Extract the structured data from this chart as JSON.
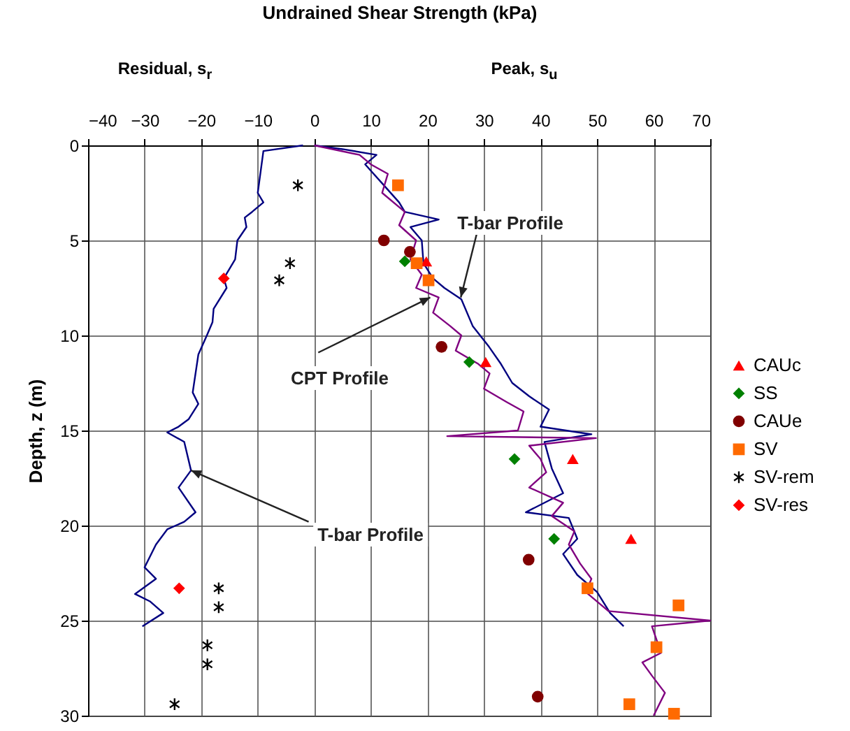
{
  "chart_data": {
    "type": "line",
    "xlabel": "Undrained Shear Strength (kPa)",
    "ylabel": "Depth, z (m)",
    "xlim": [
      -40,
      70
    ],
    "xticks": [
      -40,
      -30,
      -20,
      -10,
      0,
      10,
      20,
      30,
      40,
      50,
      60,
      70
    ],
    "ylim": [
      30,
      0
    ],
    "yticks": [
      0,
      5,
      10,
      15,
      20,
      25,
      30
    ],
    "grid": true,
    "legend": "right",
    "annotations": [
      "Residual, s$_{r}$",
      "Peak, s$_{u}$",
      {
        "text": "T-bar Profile",
        "x": 25.9,
        "y": 8.0
      },
      {
        "text": "CPT Profile",
        "x": 20.5,
        "y": 8.0
      },
      {
        "text": "T-bar Profile",
        "x": -21.8,
        "y": 17.1
      }
    ],
    "series": [
      {
        "color": "#000080",
        "x": [
          -2,
          -9,
          -9.5,
          -10,
          -9,
          -11,
          -12.3,
          -12,
          -13.6,
          -14,
          -16,
          -15.5,
          -17.8,
          -18,
          -19,
          -20.5,
          -21.5,
          -20.5,
          -22.2,
          -24,
          -26,
          -23,
          -21.8,
          -24,
          -21,
          -23,
          -26,
          -28,
          -30,
          -28,
          -31.7,
          -29,
          -26.7,
          -30.4
        ],
        "values": [
          0,
          0.3,
          1.4,
          2.5,
          3,
          3.5,
          3.8,
          4.3,
          5,
          6,
          7,
          7.5,
          8.6,
          9.3,
          10,
          11,
          13,
          13.6,
          14.4,
          14.8,
          15.1,
          15.6,
          17.1,
          18,
          19.3,
          19.8,
          20.2,
          21,
          22.2,
          22.8,
          23.6,
          24,
          24.6,
          25.3
        ]
      },
      {
        "color": "#000080",
        "x": [
          0,
          5,
          11,
          9,
          12,
          15,
          16,
          22,
          17,
          19,
          19.3,
          21,
          23,
          26,
          28,
          30.9,
          33,
          35,
          38,
          41.5,
          40,
          49,
          40.7,
          42,
          44,
          37.4,
          45,
          46.5,
          44,
          46.5,
          50,
          52.3,
          54.7
        ],
        "values": [
          0,
          0.2,
          0.5,
          1,
          2,
          3,
          3.5,
          3.9,
          4.3,
          5,
          6.2,
          7,
          7.5,
          8.1,
          9.5,
          10.6,
          11.5,
          12.5,
          13.2,
          13.9,
          14.8,
          15.2,
          15.6,
          17,
          18.3,
          19.3,
          19.6,
          20.7,
          21.5,
          22.6,
          23.5,
          24.6,
          25.3
        ]
      },
      {
        "color": "#800080",
        "x": [
          0,
          8,
          10,
          13,
          12,
          16,
          15,
          18,
          17,
          19,
          18,
          22,
          21,
          24,
          26,
          25,
          29,
          31,
          30,
          34,
          37,
          36,
          23.5,
          49.8,
          38,
          40,
          41,
          38,
          44,
          42,
          46,
          45,
          47,
          49,
          48,
          52,
          70,
          59.7,
          61.3,
          58,
          59.7,
          62,
          60
        ],
        "values": [
          0,
          0.5,
          1,
          1.5,
          2.5,
          3.5,
          4.2,
          5,
          6,
          6.8,
          7.5,
          8,
          8.8,
          9.5,
          10,
          10.8,
          11.5,
          12,
          12.8,
          13.5,
          14,
          15,
          15.3,
          15.4,
          15.8,
          16.5,
          17.2,
          18,
          18.8,
          19.5,
          20.3,
          21,
          22,
          22.8,
          23.5,
          24.5,
          25,
          25.3,
          26.7,
          27.2,
          27.9,
          28.8,
          30
        ]
      },
      {
        "type": "scatter",
        "name": "CAUc",
        "color": "#ff0000",
        "marker": "triangle",
        "x": [
          19.8,
          30.3,
          45.7,
          56
        ],
        "values": [
          6.1,
          11.4,
          16.5,
          20.7
        ]
      },
      {
        "type": "scatter",
        "name": "SS",
        "color": "#008000",
        "marker": "diamond",
        "x": [
          16,
          27.4,
          35.4,
          42.4
        ],
        "values": [
          6.1,
          11.4,
          16.5,
          20.7
        ]
      },
      {
        "type": "scatter",
        "name": "CAUe",
        "color": "#800000",
        "marker": "circle",
        "x": [
          12.3,
          16.9,
          22.5,
          37.9,
          39.5
        ],
        "values": [
          5.0,
          5.6,
          10.6,
          21.8,
          29.0
        ]
      },
      {
        "type": "scatter",
        "name": "SV",
        "color": "#ff6a00",
        "marker": "square",
        "x": [
          14.8,
          18.1,
          20.2,
          48.3,
          64.4,
          60.5,
          55.7,
          63.6
        ],
        "values": [
          2.1,
          6.2,
          7.1,
          23.3,
          24.2,
          26.4,
          29.4,
          29.9
        ]
      },
      {
        "type": "scatter",
        "name": "SV-rem",
        "color": "#000000",
        "marker": "cross",
        "x": [
          -2.9,
          -4.3,
          -6.2,
          -16.9,
          -16.9,
          -18.9,
          -18.9,
          -24.7
        ],
        "values": [
          2.1,
          6.2,
          7.1,
          23.3,
          24.3,
          26.3,
          27.3,
          29.4
        ]
      },
      {
        "type": "scatter",
        "name": "SV-res",
        "color": "#ff0000",
        "marker": "diamond",
        "x": [
          -16,
          -23.9
        ],
        "values": [
          7.0,
          23.3
        ]
      }
    ]
  }
}
